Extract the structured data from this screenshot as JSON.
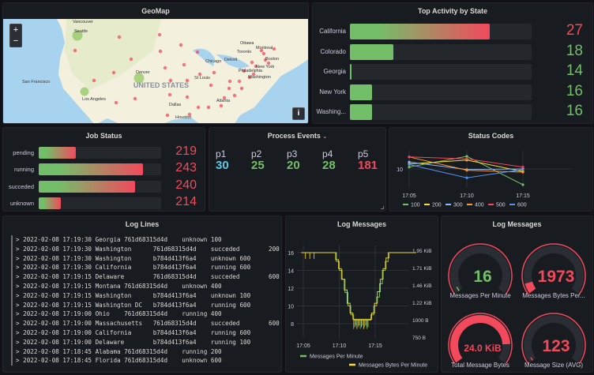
{
  "colors": {
    "green": "#73bf69",
    "red": "#f2495c",
    "yellow": "#fade2a",
    "blue": "#5794f2",
    "orange": "#ff9830",
    "lightblue": "#8ab8ff",
    "cyan": "#5ac8e6"
  },
  "geomap": {
    "title": "GeoMap",
    "zoom_in": "+",
    "zoom_out": "−",
    "info": "i",
    "map_title": "UNITED STATES",
    "cities": [
      "Vancouver",
      "Seattle",
      "San Francisco",
      "Los Angeles",
      "Denver",
      "Chicago",
      "Detroit",
      "Toronto",
      "Ottawa",
      "Montreal",
      "Boston",
      "New York",
      "Philadelphia",
      "Washington",
      "St Louis",
      "Dallas",
      "Houston",
      "Atlanta"
    ]
  },
  "top_activity": {
    "title": "Top Activity by State",
    "rows": [
      {
        "label": "California",
        "value": "27",
        "fill": 0.77,
        "color": "red"
      },
      {
        "label": "Colorado",
        "value": "18",
        "fill": 0.24,
        "color": "green"
      },
      {
        "label": "Georgia",
        "value": "14",
        "fill": 0.01,
        "color": "green"
      },
      {
        "label": "New York",
        "value": "16",
        "fill": 0.12,
        "color": "green"
      },
      {
        "label": "Washing...",
        "value": "16",
        "fill": 0.12,
        "color": "green"
      }
    ]
  },
  "job_status": {
    "title": "Job Status",
    "rows": [
      {
        "label": "pending",
        "value": "219",
        "fill": 0.3
      },
      {
        "label": "running",
        "value": "243",
        "fill": 0.85
      },
      {
        "label": "succeded",
        "value": "240",
        "fill": 0.79
      },
      {
        "label": "unknown",
        "value": "214",
        "fill": 0.18
      }
    ]
  },
  "process_events": {
    "title": "Process Events",
    "menu_icon": "chevron-down",
    "items": [
      {
        "name": "p1",
        "value": "30",
        "color": "#5ac8e6"
      },
      {
        "name": "p2",
        "value": "25",
        "color": "#73bf69"
      },
      {
        "name": "p3",
        "value": "20",
        "color": "#73bf69"
      },
      {
        "name": "p4",
        "value": "28",
        "color": "#73bf69"
      },
      {
        "name": "p5",
        "value": "181",
        "color": "#f2495c"
      }
    ]
  },
  "log_lines": {
    "title": "Log Lines",
    "lines": [
      "> 2022-02-08 17:19:30 Georgia 761d68315d4d    unknown 100",
      "> 2022-02-08 17:19:30 Washington      761d68315d4d    succeded        200",
      "> 2022-02-08 17:19:30 Washington      b784d413f6a4    unknown 600",
      "> 2022-02-08 17:19:30 California      b784d413f6a4    running 600",
      "> 2022-02-08 17:19:15 Delaware        761d68315d4d    succeded        600",
      "> 2022-02-08 17:19:15 Montana 761d68315d4d    unknown 400",
      "> 2022-02-08 17:19:15 Washington      b784d413f6a4    unknown 100",
      "> 2022-02-08 17:19:15 Washington DC   b784d413f6a4    running 600",
      "> 2022-02-08 17:19:00 Ohio    761d68315d4d    running 400",
      "> 2022-02-08 17:19:00 Massachusetts   761d68315d4d    succeded        600",
      "> 2022-02-08 17:19:00 California      b784d413f6a4    running 600",
      "> 2022-02-08 17:19:00 Delaware        b784d413f6a4    running 100",
      "> 2022-02-08 17:18:45 Alabama 761d68315d4d    running 200",
      "> 2022-02-08 17:18:45 Florida 761d68315d4d    unknown 600"
    ]
  },
  "gauges": {
    "title": "Log Messages",
    "items": [
      {
        "label": "Messages Per Minute",
        "value": "16",
        "fraction": 0.04,
        "color": "#73bf69"
      },
      {
        "label": "Messages Bytes Per...",
        "value": "1973",
        "fraction": 0.08,
        "color": "#f2495c"
      },
      {
        "label": "Total Message Bytes",
        "value": "24.0 KiB",
        "fraction": 0.85,
        "color": "#f2495c"
      },
      {
        "label": "Message Size (AVG)",
        "value": "123",
        "fraction": 0.03,
        "color": "#f2495c"
      }
    ]
  },
  "chart_data": [
    {
      "type": "line",
      "title": "Status Codes",
      "x": [
        "17:05",
        "17:10",
        "17:15"
      ],
      "y_ticks": [
        "10"
      ],
      "legend": "bottom",
      "series": [
        {
          "name": "100",
          "color": "#73bf69",
          "values": [
            10.3,
            12.0,
            7.5
          ]
        },
        {
          "name": "200",
          "color": "#fade2a",
          "values": [
            10.8,
            11.4,
            9.6
          ]
        },
        {
          "name": "300",
          "color": "#8ab8ff",
          "values": [
            11.1,
            9.9,
            10.0
          ]
        },
        {
          "name": "400",
          "color": "#ff9830",
          "values": [
            11.9,
            9.8,
            9.5
          ]
        },
        {
          "name": "500",
          "color": "#f2495c",
          "values": [
            11.9,
            11.6,
            10.3
          ]
        },
        {
          "name": "600",
          "color": "#5794f2",
          "values": [
            10.7,
            8.6,
            9.9
          ]
        }
      ]
    },
    {
      "type": "line",
      "title": "Log Messages",
      "x_ticks": [
        "17:05",
        "17:10",
        "17:15"
      ],
      "y_left_ticks": [
        "16",
        "14",
        "12",
        "10",
        "8"
      ],
      "y_right_ticks": [
        "1.95 KiB",
        "1.71 KiB",
        "1.46 KiB",
        "1.22 KiB",
        "1000 B",
        "750 B"
      ],
      "legend": "bottom",
      "series": [
        {
          "name": "Messages Per Minute",
          "color": "#73bf69",
          "axis": "left",
          "points": [
            [
              "17:04.7",
              16
            ],
            [
              "17:09.2",
              16
            ],
            [
              "17:09.6",
              15
            ],
            [
              "17:10.0",
              14
            ],
            [
              "17:10.4",
              13
            ],
            [
              "17:10.8",
              11.5
            ],
            [
              "17:11.2",
              10
            ],
            [
              "17:11.6",
              9
            ],
            [
              "17:12.0",
              8.4
            ],
            [
              "17:14.0",
              8.4
            ],
            [
              "17:14.4",
              9
            ],
            [
              "17:14.8",
              10
            ],
            [
              "17:15.2",
              11
            ],
            [
              "17:15.6",
              12.5
            ],
            [
              "17:16.0",
              14
            ],
            [
              "17:16.4",
              15
            ],
            [
              "17:16.8",
              16
            ],
            [
              "17:20.7",
              16
            ]
          ]
        },
        {
          "name": "Messages Bytes Per Minute",
          "color": "#fade2a",
          "axis": "right",
          "points": [
            [
              "17:04.7",
              16
            ],
            [
              "17:09.0",
              16
            ],
            [
              "17:09.5",
              15.2
            ],
            [
              "17:09.9",
              14.2
            ],
            [
              "17:10.3",
              13
            ],
            [
              "17:10.7",
              11.8
            ],
            [
              "17:11.1",
              10.3
            ],
            [
              "17:11.5",
              9.2
            ],
            [
              "17:11.9",
              8.5
            ],
            [
              "17:14.1",
              8.5
            ],
            [
              "17:14.5",
              9.2
            ],
            [
              "17:14.9",
              10.3
            ],
            [
              "17:15.3",
              11.6
            ],
            [
              "17:15.7",
              13
            ],
            [
              "17:16.1",
              14.2
            ],
            [
              "17:16.5",
              15.4
            ],
            [
              "17:16.9",
              16
            ],
            [
              "17:20.7",
              16
            ]
          ]
        }
      ]
    }
  ]
}
